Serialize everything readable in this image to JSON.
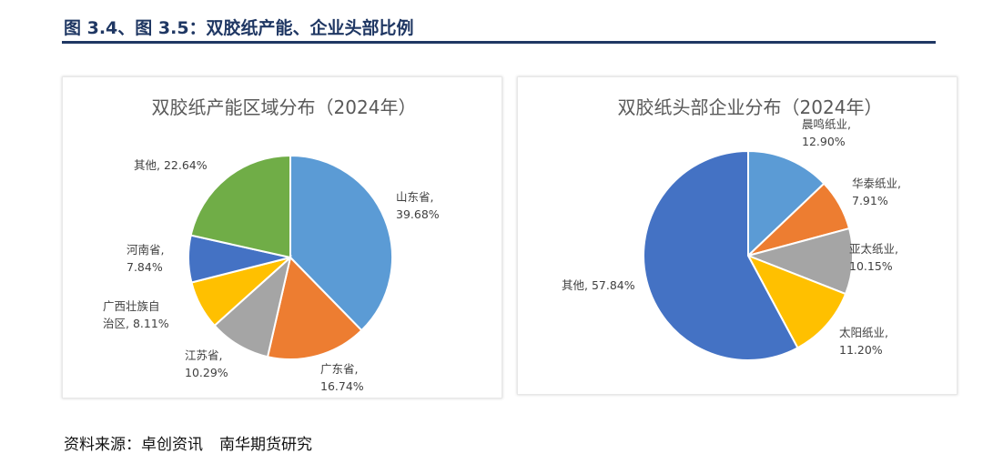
{
  "figure_title": "图 3.4、图 3.5：双胶纸产能、企业头部比例",
  "source": {
    "label": "资料来源：",
    "items": [
      "卓创资讯",
      "南华期货研究"
    ]
  },
  "colors": {
    "title_navy": "#1f3763"
  },
  "chart_data": [
    {
      "type": "pie",
      "title": "双胶纸产能区域分布（2024年）",
      "slices": [
        {
          "label_lines": [
            "山东省,",
            "39.68%"
          ],
          "value": 39.68,
          "color": "#5b9bd5"
        },
        {
          "label_lines": [
            "广东省,",
            "16.74%"
          ],
          "value": 16.74,
          "color": "#ed7d31"
        },
        {
          "label_lines": [
            "江苏省,",
            "10.29%"
          ],
          "value": 10.29,
          "color": "#a5a5a5"
        },
        {
          "label_lines": [
            "广西壮族自",
            "治区, 8.11%"
          ],
          "value": 8.11,
          "color": "#ffc000"
        },
        {
          "label_lines": [
            "河南省,",
            "7.84%"
          ],
          "value": 7.84,
          "color": "#4472c4"
        },
        {
          "label_lines": [
            "其他, 22.64%"
          ],
          "value": 22.64,
          "color": "#70ad47"
        }
      ]
    },
    {
      "type": "pie",
      "title": "双胶纸头部企业分布（2024年）",
      "slices": [
        {
          "label_lines": [
            "晨鸣纸业,",
            "12.90%"
          ],
          "value": 12.9,
          "color": "#5b9bd5"
        },
        {
          "label_lines": [
            "华泰纸业,",
            "7.91%"
          ],
          "value": 7.91,
          "color": "#ed7d31"
        },
        {
          "label_lines": [
            "亚太纸业,",
            "10.15%"
          ],
          "value": 10.15,
          "color": "#a5a5a5"
        },
        {
          "label_lines": [
            "太阳纸业,",
            "11.20%"
          ],
          "value": 11.2,
          "color": "#ffc000"
        },
        {
          "label_lines": [
            "其他, 57.84%"
          ],
          "value": 57.84,
          "color": "#4472c4"
        }
      ]
    }
  ]
}
